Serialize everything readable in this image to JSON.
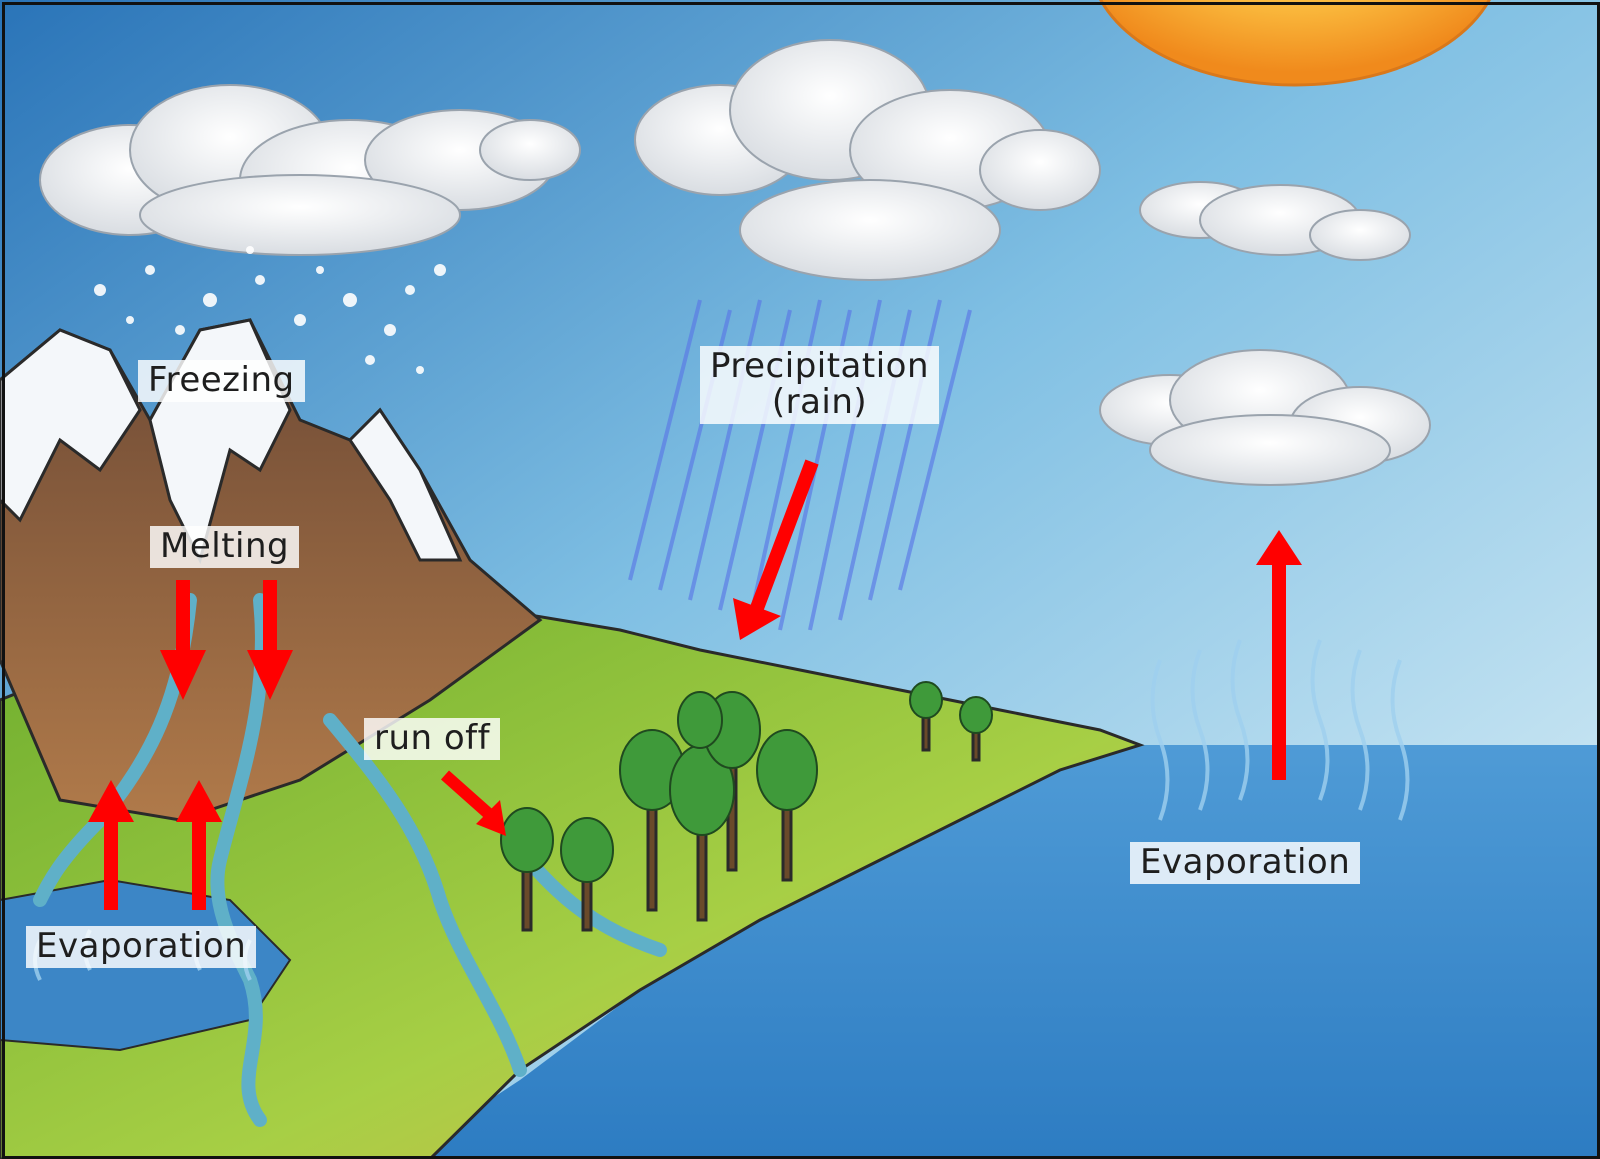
{
  "diagram": {
    "labels": {
      "freezing": "Freezing",
      "precipitation_line1": "Precipitation",
      "precipitation_line2": "(rain)",
      "melting": "Melting",
      "run_off": "run off",
      "evaporation_left": "Evaporation",
      "evaporation_right": "Evaporation"
    },
    "colors": {
      "sky_top": "#2f7fc0",
      "sky_light": "#cfe9f4",
      "sun": "#f7a21b",
      "sea": "#3f8fd0",
      "land": "#8fc53a",
      "mountain": "#8a5a3a",
      "arrow": "#ff0000",
      "rain": "#5a78e6"
    }
  }
}
